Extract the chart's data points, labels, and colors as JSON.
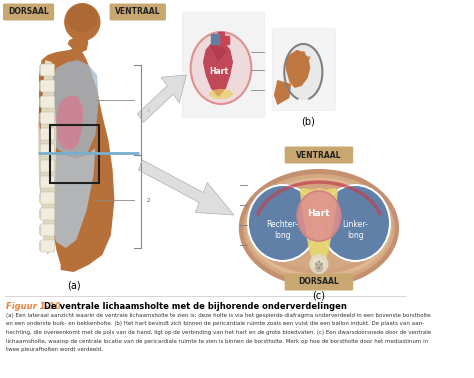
{
  "bg_color": "#ffffff",
  "label_dorsaal": "DORSAAL",
  "label_ventraal": "VENTRAAL",
  "label_b": "(b)",
  "label_a": "(a)",
  "label_c": "(c)",
  "label_hart_top": "Hart",
  "label_hart_cross": "Hart",
  "label_rechterlong": "Rechter-\nlong",
  "label_linkerlong": "Linker-\nlong",
  "label_ventraal_cross": "VENTRAAL",
  "label_dorsaal_cross": "DORSAAL",
  "title_label": "Figuur 1-10",
  "title_text": "De ventrale lichaamsholte met de bijhorende onderverdelingen",
  "caption_line1": "(a) Een lateraal aanzicht waarin de ventrale lichaamsholte te zien is; deze holte is via het gespierde diafragma onderverdeeld in een bovenste borstholte",
  "caption_line2": "en een onderste buik- en bekkenholte. (b) Het hart bevindt zich binnen de pericardiale ruimte zoals een vuist die een ballon indukt. De plaats van aan-",
  "caption_line3": "hechting, die overeenkomt met de pols van de hand, ligt op de verbinding van het hart en de grote bloedvaten. (c) Een dwarsdoorsnede door de ventrale",
  "caption_line4": "lichaamsholte, waarop de centrale locatie van de pericardiale ruimte te zien is binnen de borstholte. Merk op hoe de borstholte door het mediastinum in",
  "caption_line5": "twee pleurafholten wordt verdeeld.",
  "arrow_color": "#c0c0c0",
  "orange_color": "#e8823a",
  "body_skin": "#b8703a",
  "body_mid": "#a06030",
  "body_dark": "#7a4820",
  "spine_white": "#ddd8c0",
  "thoracic_blue": "#a0b8cc",
  "abdominal_blue": "#b0cce0",
  "heart_pink": "#d08090",
  "lung_blue": "#6080a8",
  "lung_blue2": "#8090b0",
  "cross_skin_outer": "#c09070",
  "cross_skin_inner": "#d4a882",
  "mediastinum_yellow": "#e8d870",
  "spine_cross": "#e0d8c0",
  "pericardium_pink": "#e09090",
  "label_box_tan": "#c8a870",
  "heart_red": "#c04858",
  "heart_dark": "#a03040",
  "vessel_blue": "#6080a0",
  "fist_skin": "#c07840"
}
